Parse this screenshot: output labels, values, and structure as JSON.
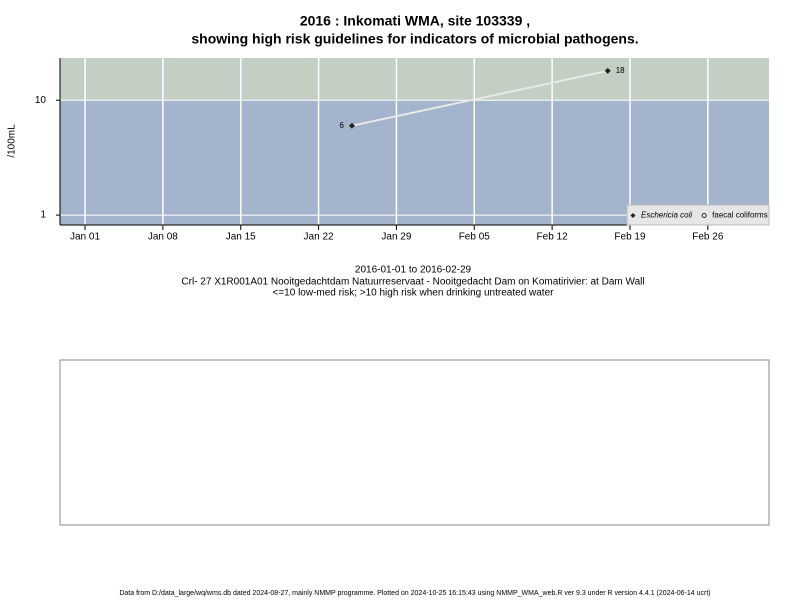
{
  "chart_data": {
    "type": "line",
    "title": [
      "2016 : Inkomati WMA, site 103339 ,",
      "showing high risk guidelines for indicators of microbial pathogens."
    ],
    "subtitle": [
      "2016-01-01 to 2016-02-29",
      "Crl- 27 X1R001A01 Nooitgedachtdam Natuurreservaat - Nooitgedacht Dam on Komatirivier: at Dam Wall",
      "<=10 low-med risk; >10 high risk when drinking untreated water"
    ],
    "y_label": "/100mL",
    "log_y": true,
    "high_risk_threshold": 10,
    "xlim": [
      "2015-12-29T18:00",
      "2016-03-02T12:00"
    ],
    "xticks": [
      {
        "value": "2016-01-01",
        "label": "Jan 01"
      },
      {
        "value": "2016-01-08",
        "label": "Jan 08"
      },
      {
        "value": "2016-01-15",
        "label": "Jan 15"
      },
      {
        "value": "2016-01-22",
        "label": "Jan 22"
      },
      {
        "value": "2016-01-29",
        "label": "Jan 29"
      },
      {
        "value": "2016-02-05",
        "label": "Feb 05"
      },
      {
        "value": "2016-02-12",
        "label": "Feb 12"
      },
      {
        "value": "2016-02-19",
        "label": "Feb 19"
      },
      {
        "value": "2016-02-26",
        "label": "Feb 26"
      }
    ],
    "ylim": [
      0.82,
      23.3
    ],
    "yticks": [
      1,
      10
    ],
    "grid": true,
    "legend": "bottom-right",
    "series": [
      {
        "name": "Eschericia coli",
        "color": "#e8e8e8",
        "x": [
          "2016-01-25",
          "2016-02-17"
        ],
        "values": [
          6,
          18
        ]
      },
      {
        "name": "faecal coliforms",
        "color": "#e8e8e8",
        "x": [],
        "values": []
      }
    ],
    "footer": "Data from D:/data_large/wq/wms.db dated 2024-08-27, mainly NMMP programme. Plotted on 2024-10-25 16:15:43 using NMMP_WMA_web.R ver 9.3 under R version 4.4.1 (2024-06-14 ucrt)"
  }
}
